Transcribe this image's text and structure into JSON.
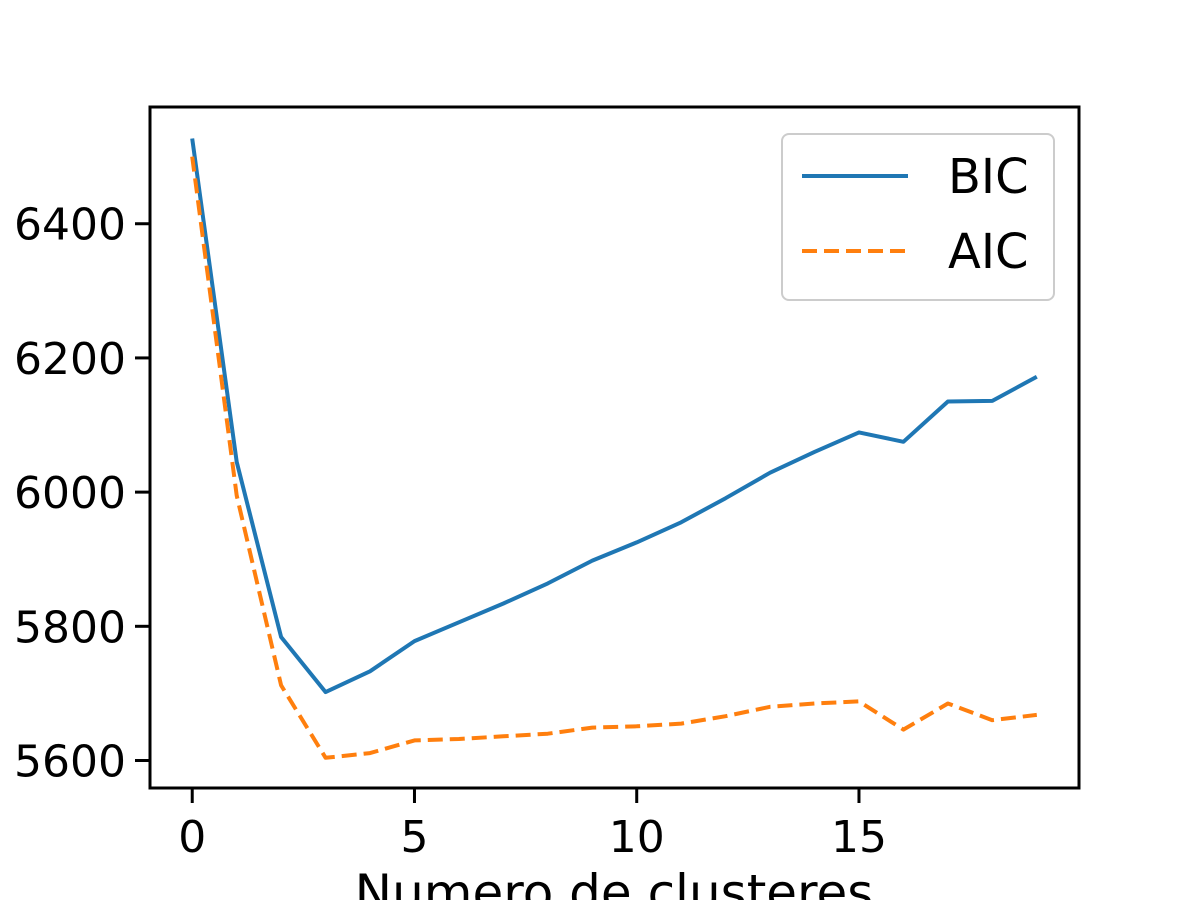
{
  "chart_data": {
    "type": "line",
    "title": "",
    "xlabel": "Numero de clusteres",
    "ylabel": "",
    "xlim": [
      -0.95,
      19.95
    ],
    "ylim": [
      5559,
      6574
    ],
    "x_ticks": [
      0,
      5,
      10,
      15
    ],
    "y_ticks": [
      5600,
      5800,
      6000,
      6200,
      6400
    ],
    "grid": false,
    "legend_position": "top-right",
    "x": [
      0,
      1,
      2,
      3,
      4,
      5,
      6,
      7,
      8,
      9,
      10,
      11,
      12,
      13,
      14,
      15,
      16,
      17,
      18,
      19
    ],
    "series": [
      {
        "name": "BIC",
        "color": "#1f77b4",
        "style": "solid",
        "values": [
          6527,
          6045,
          5784,
          5702,
          5733,
          5778,
          5806,
          5834,
          5864,
          5898,
          5925,
          5955,
          5991,
          6029,
          6060,
          6089,
          6075,
          6135,
          6136,
          6172
        ]
      },
      {
        "name": "AIC",
        "color": "#ff7f0e",
        "style": "dashed",
        "values": [
          6500,
          5995,
          5712,
          5604,
          5611,
          5630,
          5632,
          5636,
          5640,
          5649,
          5651,
          5655,
          5666,
          5680,
          5685,
          5688,
          5646,
          5685,
          5660,
          5668
        ]
      }
    ]
  }
}
